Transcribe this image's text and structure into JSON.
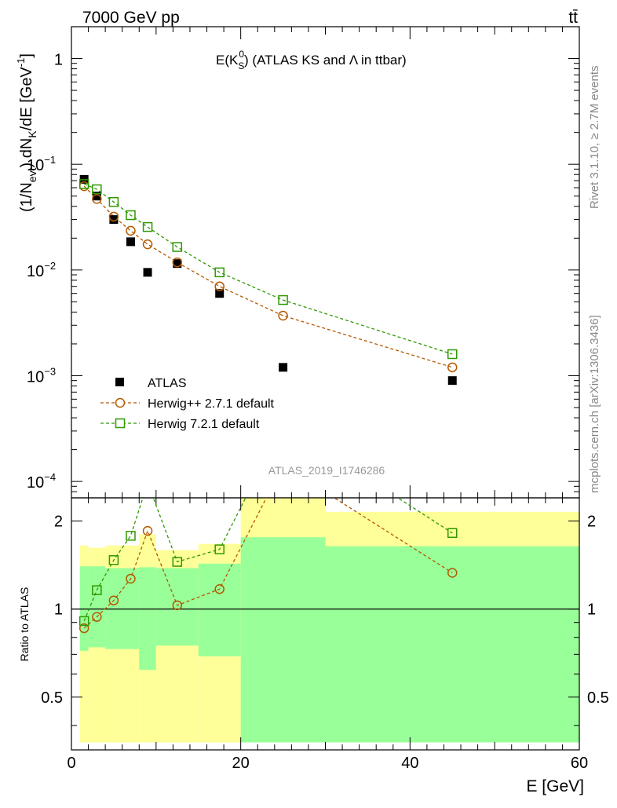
{
  "header": {
    "energy_label": "7000 GeV pp",
    "process_label": "tt̄"
  },
  "side_labels": {
    "rivet": "Rivet 3.1.10, ≥ 2.7M events",
    "mcplots": "mcplots.cern.ch [arXiv:1306.3436]"
  },
  "chart_data": [
    {
      "type": "scatter",
      "title_main": "E(K",
      "title_sub": "S",
      "title_sup": "0",
      "title_rest": ") (ATLAS KS and Λ in ttbar)",
      "ylabel": "(1/N_evt) dN_K/dE [GeV⁻¹]",
      "ylabel_parts": {
        "a": "(1/N",
        "a_sub": "evt",
        "b": ") dN",
        "b_sub": "K",
        "c": "/dE [GeV",
        "c_sup": "-1",
        "d": "]"
      },
      "yscale": "log",
      "ylim": [
        7e-05,
        2.0
      ],
      "xlim": [
        0,
        60
      ],
      "watermark": "ATLAS_2019_I1746286",
      "y_tick_labels": [
        {
          "value": 1,
          "label": "1"
        },
        {
          "value": 0.1,
          "label": "10",
          "exp": "−1"
        },
        {
          "value": 0.01,
          "label": "10",
          "exp": "−2"
        },
        {
          "value": 0.001,
          "label": "10",
          "exp": "−3"
        },
        {
          "value": 0.0001,
          "label": "10",
          "exp": "−4"
        }
      ],
      "legend_position": "lower-left",
      "series": [
        {
          "name": "ATLAS",
          "marker": "filled-square",
          "color": "#000000",
          "points": [
            {
              "x": 1.5,
              "y": 0.072
            },
            {
              "x": 3,
              "y": 0.05
            },
            {
              "x": 5,
              "y": 0.03
            },
            {
              "x": 7,
              "y": 0.0185
            },
            {
              "x": 9,
              "y": 0.0095
            },
            {
              "x": 12.5,
              "y": 0.0115
            },
            {
              "x": 17.5,
              "y": 0.006
            },
            {
              "x": 25,
              "y": 0.0012
            },
            {
              "x": 45,
              "y": 0.0009
            }
          ]
        },
        {
          "name": "Herwig++ 2.7.1 default",
          "marker": "open-circle",
          "color": "#b35900",
          "points": [
            {
              "x": 1.5,
              "y": 0.062
            },
            {
              "x": 3,
              "y": 0.047
            },
            {
              "x": 5,
              "y": 0.032
            },
            {
              "x": 7,
              "y": 0.0235
            },
            {
              "x": 9,
              "y": 0.0175
            },
            {
              "x": 12.5,
              "y": 0.0118
            },
            {
              "x": 17.5,
              "y": 0.007
            },
            {
              "x": 25,
              "y": 0.0037
            },
            {
              "x": 45,
              "y": 0.0012
            }
          ]
        },
        {
          "name": "Herwig 7.2.1 default",
          "marker": "open-square",
          "color": "#2e9900",
          "points": [
            {
              "x": 1.5,
              "y": 0.065
            },
            {
              "x": 3,
              "y": 0.058
            },
            {
              "x": 5,
              "y": 0.044
            },
            {
              "x": 7,
              "y": 0.033
            },
            {
              "x": 9,
              "y": 0.0255
            },
            {
              "x": 12.5,
              "y": 0.0165
            },
            {
              "x": 17.5,
              "y": 0.0095
            },
            {
              "x": 25,
              "y": 0.0052
            },
            {
              "x": 45,
              "y": 0.0016
            }
          ]
        }
      ]
    },
    {
      "type": "line",
      "ylabel": "Ratio to ATLAS",
      "xlabel": "E [GeV]",
      "xlim": [
        0,
        60
      ],
      "yscale": "log",
      "ylim": [
        0.33,
        2.4
      ],
      "x_tick_labels": [
        "0",
        "20",
        "40",
        "60"
      ],
      "y_tick_labels": [
        {
          "value": 0.5,
          "label": "0.5"
        },
        {
          "value": 1,
          "label": "1"
        },
        {
          "value": 2,
          "label": "2"
        }
      ],
      "bands": [
        {
          "x0": 1,
          "x1": 2,
          "yellow": [
            0.35,
            1.65
          ],
          "green": [
            0.72,
            1.4
          ]
        },
        {
          "x0": 2,
          "x1": 4,
          "yellow": [
            0.35,
            1.62
          ],
          "green": [
            0.74,
            1.4
          ]
        },
        {
          "x0": 4,
          "x1": 8,
          "yellow": [
            0.35,
            1.65
          ],
          "green": [
            0.73,
            1.38
          ]
        },
        {
          "x0": 8,
          "x1": 10,
          "yellow": [
            0.35,
            1.8
          ],
          "green": [
            0.62,
            1.39
          ]
        },
        {
          "x0": 10,
          "x1": 15,
          "yellow": [
            0.35,
            1.59
          ],
          "green": [
            0.75,
            1.38
          ]
        },
        {
          "x0": 15,
          "x1": 20,
          "yellow": [
            0.35,
            1.67
          ],
          "green": [
            0.69,
            1.43
          ]
        },
        {
          "x0": 20,
          "x1": 30,
          "yellow": [
            0.35,
            2.8
          ],
          "green": [
            0.35,
            1.76
          ]
        },
        {
          "x0": 30,
          "x1": 60,
          "yellow": [
            0.35,
            2.15
          ],
          "green": [
            0.35,
            1.64
          ]
        }
      ],
      "series": [
        {
          "name": "Herwig++ 2.7.1 default",
          "marker": "open-circle",
          "color": "#b35900",
          "points": [
            {
              "x": 1.5,
              "y": 0.86
            },
            {
              "x": 3,
              "y": 0.94
            },
            {
              "x": 5,
              "y": 1.07
            },
            {
              "x": 7,
              "y": 1.27
            },
            {
              "x": 9,
              "y": 1.85
            },
            {
              "x": 12.5,
              "y": 1.03
            },
            {
              "x": 17.5,
              "y": 1.17
            },
            {
              "x": 25,
              "y": 3.1
            },
            {
              "x": 45,
              "y": 1.33
            }
          ]
        },
        {
          "name": "Herwig 7.2.1 default",
          "marker": "open-square",
          "color": "#2e9900",
          "points": [
            {
              "x": 1.5,
              "y": 0.91
            },
            {
              "x": 3,
              "y": 1.16
            },
            {
              "x": 5,
              "y": 1.47
            },
            {
              "x": 7,
              "y": 1.78
            },
            {
              "x": 9,
              "y": 2.7
            },
            {
              "x": 12.5,
              "y": 1.45
            },
            {
              "x": 17.5,
              "y": 1.6
            },
            {
              "x": 25,
              "y": 4.3
            },
            {
              "x": 45,
              "y": 1.82
            }
          ]
        }
      ]
    }
  ]
}
